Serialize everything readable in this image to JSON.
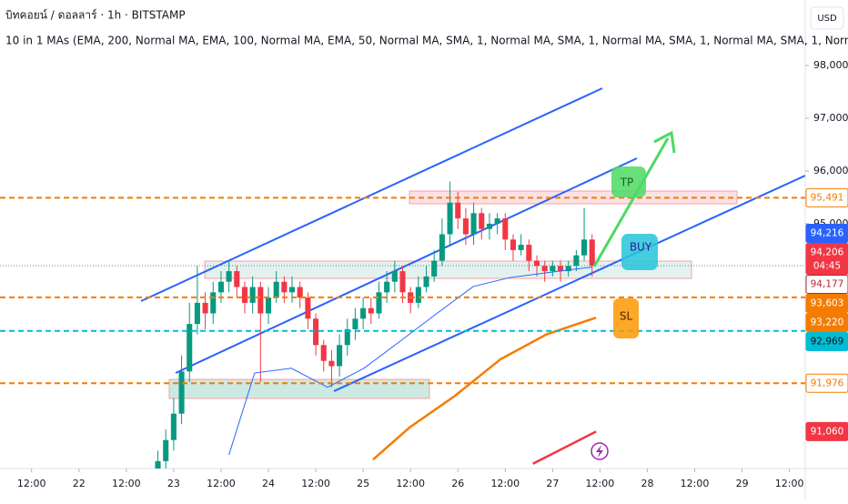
{
  "header": {
    "symbol": "บิทคอยน์ / ดอลลาร์ · 1h · BITSTAMP",
    "indicator": "10 in 1 MAs (EMA, 200, Normal MA, EMA, 100, Normal MA, EMA, 50, Normal MA, SMA, 1, Normal MA, SMA, 1, Normal MA, SMA, 1, Normal MA, SMA, 1, Normal MA, SMA,",
    "currency": "USD"
  },
  "annotations": {
    "tp": "TP",
    "buy": "BUY",
    "sl": "SL"
  },
  "chart_data": {
    "type": "candlestick",
    "x": [
      20,
      22,
      24,
      26,
      28,
      30,
      32,
      34,
      36,
      38,
      40,
      42,
      44,
      46,
      48,
      50,
      52,
      54,
      56,
      58,
      60,
      62,
      64,
      66,
      68,
      70,
      72,
      74,
      76,
      78,
      80,
      82,
      84,
      86,
      88,
      90,
      92,
      94,
      96,
      98,
      100,
      102,
      104,
      106,
      108,
      110,
      112,
      114,
      116,
      118,
      120,
      122,
      124,
      126,
      128,
      130
    ],
    "open": [
      90200,
      90500,
      90900,
      91400,
      92200,
      93100,
      93500,
      93300,
      93700,
      93900,
      94100,
      93800,
      93500,
      93800,
      93300,
      93600,
      93900,
      93700,
      93800,
      93600,
      93200,
      92700,
      92400,
      92300,
      92700,
      93000,
      93200,
      93400,
      93300,
      93700,
      93900,
      94100,
      93700,
      93500,
      93800,
      94000,
      94300,
      94800,
      95400,
      95100,
      94800,
      95200,
      94900,
      95000,
      95100,
      94700,
      94500,
      94600,
      94300,
      94200,
      94100,
      94200,
      94100,
      94200,
      94400,
      94700
    ],
    "high": [
      90700,
      91100,
      91700,
      92500,
      93500,
      94200,
      93700,
      93900,
      94100,
      94300,
      94200,
      93900,
      94000,
      93900,
      93800,
      94100,
      94000,
      94000,
      93900,
      93700,
      93300,
      92800,
      92600,
      92900,
      93200,
      93400,
      93600,
      93600,
      93900,
      94100,
      94300,
      94200,
      93800,
      94000,
      94200,
      94500,
      95100,
      95800,
      95600,
      95300,
      95400,
      95300,
      95200,
      95200,
      95200,
      94800,
      94800,
      94700,
      94400,
      94300,
      94300,
      94300,
      94300,
      94500,
      95300,
      94800
    ],
    "low": [
      90000,
      90300,
      90700,
      91200,
      92000,
      92900,
      93000,
      93100,
      93500,
      93700,
      93600,
      93300,
      93300,
      92000,
      93100,
      93500,
      93500,
      93500,
      93400,
      93000,
      92500,
      92200,
      91900,
      92100,
      92500,
      92800,
      93000,
      93100,
      93200,
      93500,
      93700,
      93500,
      93300,
      93400,
      93700,
      93900,
      94200,
      94600,
      94900,
      94600,
      94600,
      94700,
      94700,
      94800,
      94500,
      94300,
      94400,
      94100,
      94000,
      93900,
      94000,
      93900,
      94000,
      94100,
      94300,
      94000
    ],
    "close": [
      90500,
      90900,
      91400,
      92200,
      93100,
      93500,
      93300,
      93700,
      93900,
      94100,
      93800,
      93500,
      93800,
      93300,
      93600,
      93900,
      93700,
      93800,
      93600,
      93200,
      92700,
      92400,
      92300,
      92700,
      93000,
      93200,
      93400,
      93300,
      93700,
      93900,
      94100,
      93700,
      93500,
      93800,
      94000,
      94300,
      94800,
      95400,
      95100,
      94800,
      95200,
      94900,
      95000,
      95100,
      94700,
      94500,
      94600,
      94300,
      94200,
      94100,
      94200,
      94100,
      94200,
      94400,
      94700,
      94200
    ],
    "up_color": "#089981",
    "down_color": "#f23645",
    "lines": [
      {
        "color": "#2962ff",
        "x": [
          38,
          44.5,
          53.8,
          63,
          72.2,
          81.5,
          90.7,
          99.9,
          109.2,
          118.4,
          129.9
        ],
        "values": [
          90620,
          92170,
          92260,
          91900,
          92260,
          92780,
          93300,
          93810,
          93980,
          94070,
          94177
        ]
      },
      {
        "color": "#f57c00",
        "x": [
          74.5,
          83.8,
          95.3,
          106.8,
          118.4,
          131
        ],
        "values": [
          90530,
          91140,
          91740,
          92430,
          92900,
          93220
        ]
      },
      {
        "color": "#f23645",
        "x": [
          115,
          131
        ],
        "values": [
          90450,
          91060
        ]
      }
    ],
    "price_labels": [
      {
        "value": 95491,
        "label": "95,491",
        "bg": "#ffffff",
        "fg": "#f57c00",
        "line": "dashed"
      },
      {
        "value": 94216,
        "label": "94,216",
        "bg": "#2962ff",
        "fg": "#ffffff"
      },
      {
        "value": 94206,
        "label": "94,206",
        "countdown": "04:45",
        "bg": "#f23645",
        "fg": "#ffffff",
        "line": "dotted"
      },
      {
        "value": 94177,
        "label": "94,177",
        "bg": "#ffffff",
        "fg": "#b22833"
      },
      {
        "value": 93603,
        "label": "93,603",
        "bg": "#f57c00",
        "fg": "#ffffff",
        "line": "dashed"
      },
      {
        "value": 93220,
        "label": "93,220",
        "bg": "#f57c00",
        "fg": "#ffffff"
      },
      {
        "value": 92969,
        "label": "92,969",
        "bg": "#00bcd4",
        "fg": "#131722",
        "line": "dashed"
      },
      {
        "value": 91976,
        "label": "91,976",
        "bg": "#ffffff",
        "fg": "#f57c00",
        "line": "dashed"
      },
      {
        "value": 91060,
        "label": "91,060",
        "bg": "#f23645",
        "fg": "#ffffff"
      }
    ],
    "xlim": [
      -20,
      184
    ],
    "ylim": [
      90360,
      99240
    ],
    "xticks": [
      {
        "value": -12,
        "label": "12:00"
      },
      {
        "value": 0,
        "label": "22"
      },
      {
        "value": 12,
        "label": "12:00"
      },
      {
        "value": 24,
        "label": "23"
      },
      {
        "value": 36,
        "label": "12:00"
      },
      {
        "value": 48,
        "label": "24"
      },
      {
        "value": 60,
        "label": "12:00"
      },
      {
        "value": 72,
        "label": "25"
      },
      {
        "value": 84,
        "label": "12:00"
      },
      {
        "value": 96,
        "label": "26"
      },
      {
        "value": 108,
        "label": "12:00"
      },
      {
        "value": 120,
        "label": "27"
      },
      {
        "value": 132,
        "label": "12:00"
      },
      {
        "value": 144,
        "label": "28"
      },
      {
        "value": 156,
        "label": "12:00"
      },
      {
        "value": 168,
        "label": "29"
      },
      {
        "value": 180,
        "label": "12:00"
      }
    ],
    "yticks": [
      {
        "value": 95000,
        "label": "95,000"
      },
      {
        "value": 96000,
        "label": "96,000"
      },
      {
        "value": 97000,
        "label": "97,000"
      },
      {
        "value": 98000,
        "label": "98,000"
      }
    ]
  }
}
